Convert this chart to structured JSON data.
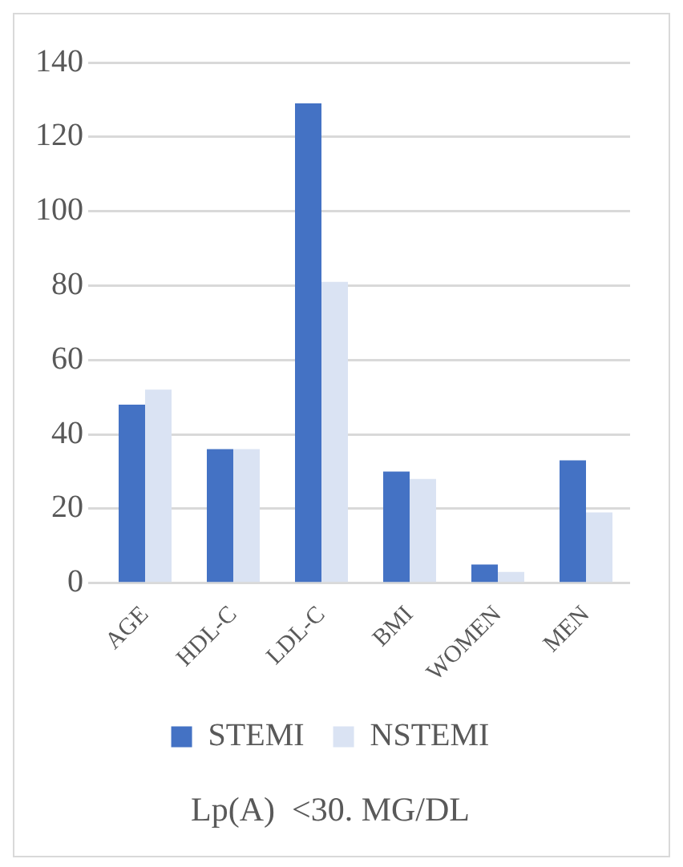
{
  "chart_data": {
    "type": "bar",
    "title": "Lp(A)  <30. MG/DL",
    "categories": [
      "AGE",
      "HDL-C",
      "LDL-C",
      "BMI",
      "WOMEN",
      "MEN"
    ],
    "series": [
      {
        "name": "STEMI",
        "color": "#4472c4",
        "values": [
          48,
          36,
          129,
          30,
          5,
          33
        ]
      },
      {
        "name": "NSTEMI",
        "color": "#dae3f3",
        "values": [
          52,
          36,
          81,
          28,
          3,
          19
        ]
      }
    ],
    "ylim": [
      0,
      140
    ],
    "yticks": [
      0,
      20,
      40,
      60,
      80,
      100,
      120,
      140
    ],
    "grid": "y",
    "legend": "bottom"
  }
}
